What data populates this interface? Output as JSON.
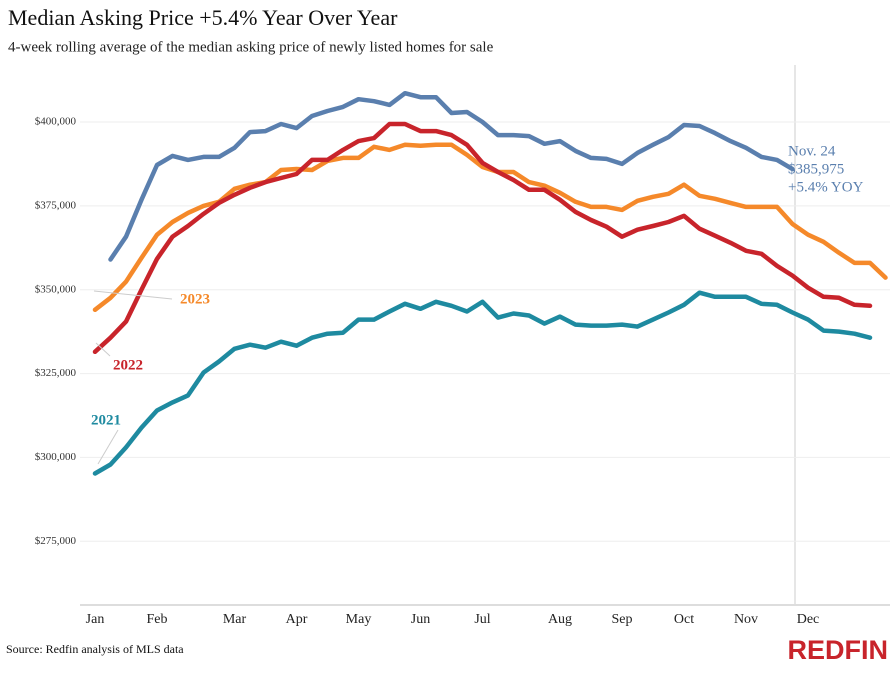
{
  "chart_data": {
    "type": "line",
    "title": "Median Asking Price +5.4% Year Over Year",
    "subtitle": "4-week rolling average of the median asking price of newly listed homes for sale",
    "source": "Source: Redfin analysis of MLS data",
    "brand": "REDFIN",
    "annotation": [
      "Nov. 24",
      "$385,975",
      "+5.4% YOY"
    ],
    "categories": [
      "Jan",
      null,
      null,
      null,
      "Feb",
      null,
      null,
      null,
      null,
      "Mar",
      null,
      null,
      null,
      "Apr",
      null,
      null,
      null,
      "May",
      null,
      null,
      null,
      "Jun",
      null,
      null,
      null,
      "Jul",
      null,
      null,
      null,
      null,
      "Aug",
      null,
      null,
      null,
      "Sep",
      null,
      null,
      null,
      "Oct",
      null,
      null,
      null,
      "Nov",
      null,
      null,
      null,
      "Dec",
      null,
      null,
      null,
      null,
      null
    ],
    "ylim": [
      256000,
      417000
    ],
    "yticks": [
      {
        "value": 275000,
        "label": "$275,000"
      },
      {
        "value": 300000,
        "label": "$300,000"
      },
      {
        "value": 325000,
        "label": "$325,000"
      },
      {
        "value": 350000,
        "label": "$350,000"
      },
      {
        "value": 375000,
        "label": "$375,000"
      },
      {
        "value": 400000,
        "label": "$400,000"
      }
    ],
    "grid": true,
    "series": [
      {
        "color": "#5a7fae",
        "values": [
          null,
          359000,
          365800,
          376800,
          387200,
          389900,
          388700,
          389600,
          389600,
          392300,
          397000,
          397300,
          399400,
          398200,
          401800,
          403300,
          404500,
          406800,
          406200,
          405100,
          408600,
          407400,
          407400,
          402700,
          403000,
          400000,
          396100,
          396100,
          395800,
          393500,
          394300,
          391400,
          389300,
          389000,
          387500,
          390800,
          393200,
          395500,
          399100,
          398800,
          396700,
          394300,
          392300,
          389600,
          388700,
          385975,
          null,
          null,
          null,
          null,
          null,
          null
        ]
      },
      {
        "name": "2023",
        "color": "#f5892a",
        "values": [
          344000,
          347600,
          352400,
          359500,
          366400,
          370200,
          372900,
          375000,
          376200,
          380100,
          381300,
          382100,
          385700,
          386000,
          385700,
          388400,
          389300,
          389300,
          392600,
          391700,
          393200,
          392900,
          393200,
          393200,
          390200,
          386600,
          385100,
          385100,
          382100,
          381000,
          378900,
          376200,
          374700,
          374700,
          373800,
          376500,
          377700,
          378600,
          381300,
          378000,
          377100,
          375900,
          374700,
          374700,
          374700,
          369600,
          366400,
          364300,
          361000,
          358000,
          358000,
          353600
        ]
      },
      {
        "name": "2022",
        "color": "#c8242b",
        "values": [
          331500,
          335700,
          340500,
          350000,
          359200,
          365800,
          369000,
          372600,
          375900,
          378300,
          380400,
          382100,
          383300,
          384500,
          388700,
          388700,
          391700,
          394300,
          395200,
          399400,
          399400,
          397300,
          397300,
          396100,
          393200,
          387800,
          385100,
          382700,
          379800,
          379800,
          376800,
          373200,
          370800,
          368800,
          365800,
          367900,
          369000,
          370200,
          372000,
          368200,
          366100,
          364000,
          361600,
          360700,
          357100,
          354200,
          350600,
          347900,
          347600,
          345500,
          345200,
          null
        ]
      },
      {
        "name": "2021",
        "color": "#1e8aa0",
        "values": [
          295200,
          297900,
          303000,
          308900,
          314000,
          316400,
          318500,
          325300,
          328600,
          332400,
          333600,
          332700,
          334500,
          333300,
          335700,
          336900,
          337200,
          341100,
          341100,
          343500,
          345800,
          344300,
          346400,
          345200,
          343500,
          346400,
          341700,
          342900,
          342300,
          339900,
          342000,
          339600,
          339300,
          339300,
          339600,
          339000,
          341100,
          343200,
          345500,
          349100,
          347900,
          347900,
          347900,
          345800,
          345500,
          343200,
          341100,
          337800,
          337500,
          336900,
          335700,
          null
        ]
      }
    ]
  }
}
